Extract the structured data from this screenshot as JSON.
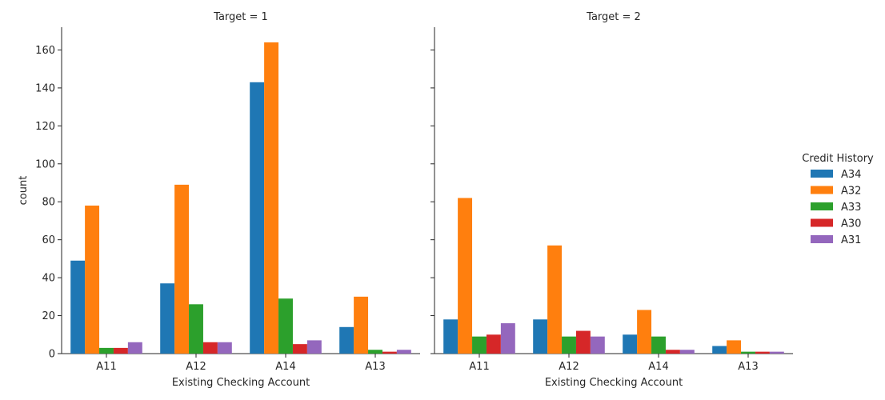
{
  "chart_data": [
    {
      "type": "bar",
      "title": "Target = 1",
      "xlabel": "Existing Checking Account",
      "ylabel": "count",
      "categories": [
        "A11",
        "A12",
        "A14",
        "A13"
      ],
      "ylim": [
        0,
        172
      ],
      "yticks": [
        0,
        20,
        40,
        60,
        80,
        100,
        120,
        140,
        160
      ],
      "series": [
        {
          "name": "A34",
          "color": "#1f77b4",
          "values": [
            49,
            37,
            143,
            14
          ]
        },
        {
          "name": "A32",
          "color": "#ff7f0e",
          "values": [
            78,
            89,
            164,
            30
          ]
        },
        {
          "name": "A33",
          "color": "#2ca02c",
          "values": [
            3,
            26,
            29,
            2
          ]
        },
        {
          "name": "A30",
          "color": "#d62728",
          "values": [
            3,
            6,
            5,
            1
          ]
        },
        {
          "name": "A31",
          "color": "#9467bd",
          "values": [
            6,
            6,
            7,
            2
          ]
        }
      ]
    },
    {
      "type": "bar",
      "title": "Target = 2",
      "xlabel": "Existing Checking Account",
      "ylabel": "",
      "categories": [
        "A11",
        "A12",
        "A14",
        "A13"
      ],
      "ylim": [
        0,
        172
      ],
      "yticks": [
        0,
        20,
        40,
        60,
        80,
        100,
        120,
        140,
        160
      ],
      "series": [
        {
          "name": "A34",
          "color": "#1f77b4",
          "values": [
            18,
            18,
            10,
            4
          ]
        },
        {
          "name": "A32",
          "color": "#ff7f0e",
          "values": [
            82,
            57,
            23,
            7
          ]
        },
        {
          "name": "A33",
          "color": "#2ca02c",
          "values": [
            9,
            9,
            9,
            1
          ]
        },
        {
          "name": "A30",
          "color": "#d62728",
          "values": [
            10,
            12,
            2,
            1
          ]
        },
        {
          "name": "A31",
          "color": "#9467bd",
          "values": [
            16,
            9,
            2,
            1
          ]
        }
      ]
    }
  ],
  "legend": {
    "title": "Credit History",
    "placement": "right",
    "items": [
      {
        "label": "A34",
        "color": "#1f77b4"
      },
      {
        "label": "A32",
        "color": "#ff7f0e"
      },
      {
        "label": "A33",
        "color": "#2ca02c"
      },
      {
        "label": "A30",
        "color": "#d62728"
      },
      {
        "label": "A31",
        "color": "#9467bd"
      }
    ]
  }
}
